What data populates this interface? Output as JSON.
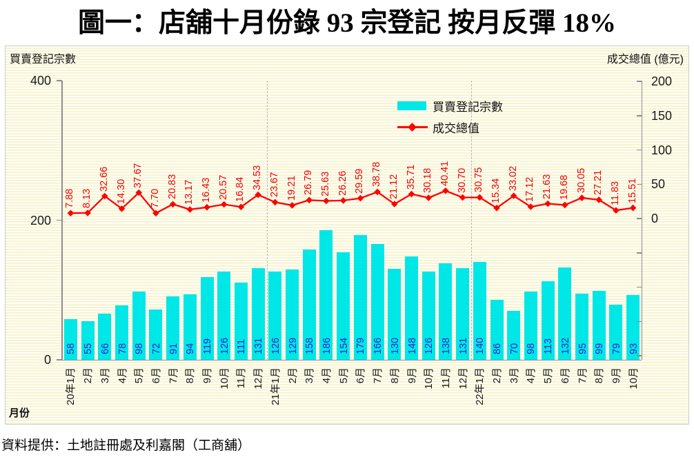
{
  "title": "圖一：店舖十月份錄 93 宗登記  按月反彈 18%",
  "source_note": "資料提供：土地註冊處及利嘉閣（工商舖）",
  "colors": {
    "bar": "#00E7E7",
    "bar_label": "#2424CC",
    "line": "#FF0000",
    "line_label": "#EE0000",
    "axis": "#8C8C8C",
    "separator": "#B5B5B5",
    "plot_stripe_light": "#FFFEF6",
    "plot_stripe_dark": "#F6F4D2"
  },
  "chart_data": {
    "type": "combo_bar_line",
    "x_axis_title": "月份",
    "categories": [
      "20年1月",
      "2月",
      "3月",
      "4月",
      "5月",
      "6月",
      "7月",
      "8月",
      "9月",
      "10月",
      "11月",
      "12月",
      "21年1月",
      "2月",
      "3月",
      "4月",
      "5月",
      "6月",
      "7月",
      "8月",
      "9月",
      "10月",
      "11月",
      "12月",
      "22年1月",
      "2月",
      "3月",
      "4月",
      "5月",
      "6月",
      "7月",
      "8月",
      "9月",
      "10月"
    ],
    "left_axis": {
      "title": "買賣登記宗數",
      "range": [
        0,
        400
      ],
      "tick_labels": [
        400,
        200,
        0
      ]
    },
    "right_axis": {
      "title": "成交總值 (億元)",
      "displayed_range": [
        0,
        200
      ],
      "tick_labels": [
        200,
        150,
        100,
        50,
        0
      ],
      "unlabeled_minor_ticks": [
        -50,
        -100,
        -150,
        -200
      ]
    },
    "year_separator_after_indices": [
      11,
      23
    ],
    "legend_position": "top-right-inside",
    "series": [
      {
        "name": "買賣登記宗數",
        "type": "bar",
        "values": [
          58,
          55,
          66,
          78,
          98,
          72,
          91,
          94,
          119,
          126,
          111,
          131,
          126,
          129,
          158,
          186,
          154,
          179,
          166,
          130,
          148,
          126,
          138,
          131,
          140,
          86,
          70,
          98,
          113,
          132,
          95,
          99,
          79,
          93
        ]
      },
      {
        "name": "成交總值",
        "type": "line",
        "marker": "diamond",
        "values": [
          7.88,
          8.13,
          32.66,
          14.3,
          37.67,
          7.7,
          20.83,
          13.17,
          16.43,
          20.57,
          16.84,
          34.53,
          23.67,
          19.21,
          26.79,
          25.63,
          26.26,
          29.59,
          38.78,
          21.12,
          35.71,
          30.18,
          40.41,
          30.7,
          30.75,
          15.34,
          33.02,
          17.12,
          21.63,
          19.68,
          30.05,
          27.21,
          11.83,
          15.51
        ]
      }
    ]
  }
}
